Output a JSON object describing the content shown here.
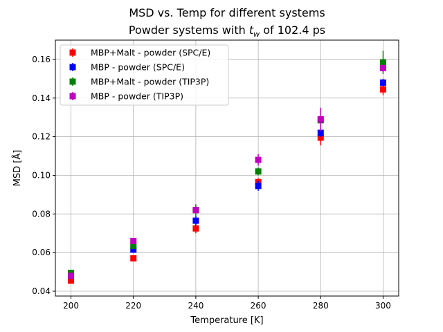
{
  "chart_data": {
    "type": "scatter",
    "title_line1": "MSD vs. Temp for different systems",
    "title_line2_prefix": "Powder systems with ",
    "title_line2_symbol": "t",
    "title_line2_subscript": "w",
    "title_line2_suffix": " of 102.4 ps",
    "xlabel": "Temperature [K]",
    "ylabel": "MSD [Å]",
    "xlim": [
      195,
      305
    ],
    "ylim": [
      0.0375,
      0.17
    ],
    "xticks": [
      200,
      220,
      240,
      260,
      280,
      300
    ],
    "xtick_labels": [
      "200",
      "220",
      "240",
      "260",
      "280",
      "300"
    ],
    "yticks": [
      0.04,
      0.06,
      0.08,
      0.1,
      0.12,
      0.14,
      0.16
    ],
    "ytick_labels": [
      "0.04",
      "0.06",
      "0.08",
      "0.10",
      "0.12",
      "0.14",
      "0.16"
    ],
    "grid": true,
    "legend_position": "top-left",
    "x": [
      200,
      220,
      240,
      260,
      280,
      300
    ],
    "series": [
      {
        "name": "MBP+Malt - powder (SPC/E)",
        "color": "#ff0000",
        "values": [
          0.0455,
          0.057,
          0.0725,
          0.0965,
          0.1195,
          0.1445
        ],
        "errors": [
          0.0015,
          0.001,
          0.0025,
          0.002,
          0.004,
          0.003
        ]
      },
      {
        "name": "MBP - powder (SPC/E)",
        "color": "#0000ff",
        "values": [
          0.048,
          0.0615,
          0.0765,
          0.0945,
          0.122,
          0.148
        ],
        "errors": [
          0.0015,
          0.0015,
          0.0025,
          0.0025,
          0.002,
          0.002
        ]
      },
      {
        "name": "MBP+Malt - powder (TIP3P)",
        "color": "#008000",
        "values": [
          0.0495,
          0.0635,
          0.082,
          0.102,
          0.1285,
          0.1585
        ],
        "errors": [
          0.0015,
          0.0015,
          0.003,
          0.002,
          0.002,
          0.006
        ]
      },
      {
        "name": "MBP - powder (TIP3P)",
        "color": "#bf00bf",
        "values": [
          0.048,
          0.066,
          0.082,
          0.108,
          0.129,
          0.1555
        ],
        "errors": [
          0.0015,
          0.0015,
          0.002,
          0.003,
          0.006,
          0.002
        ]
      }
    ]
  }
}
